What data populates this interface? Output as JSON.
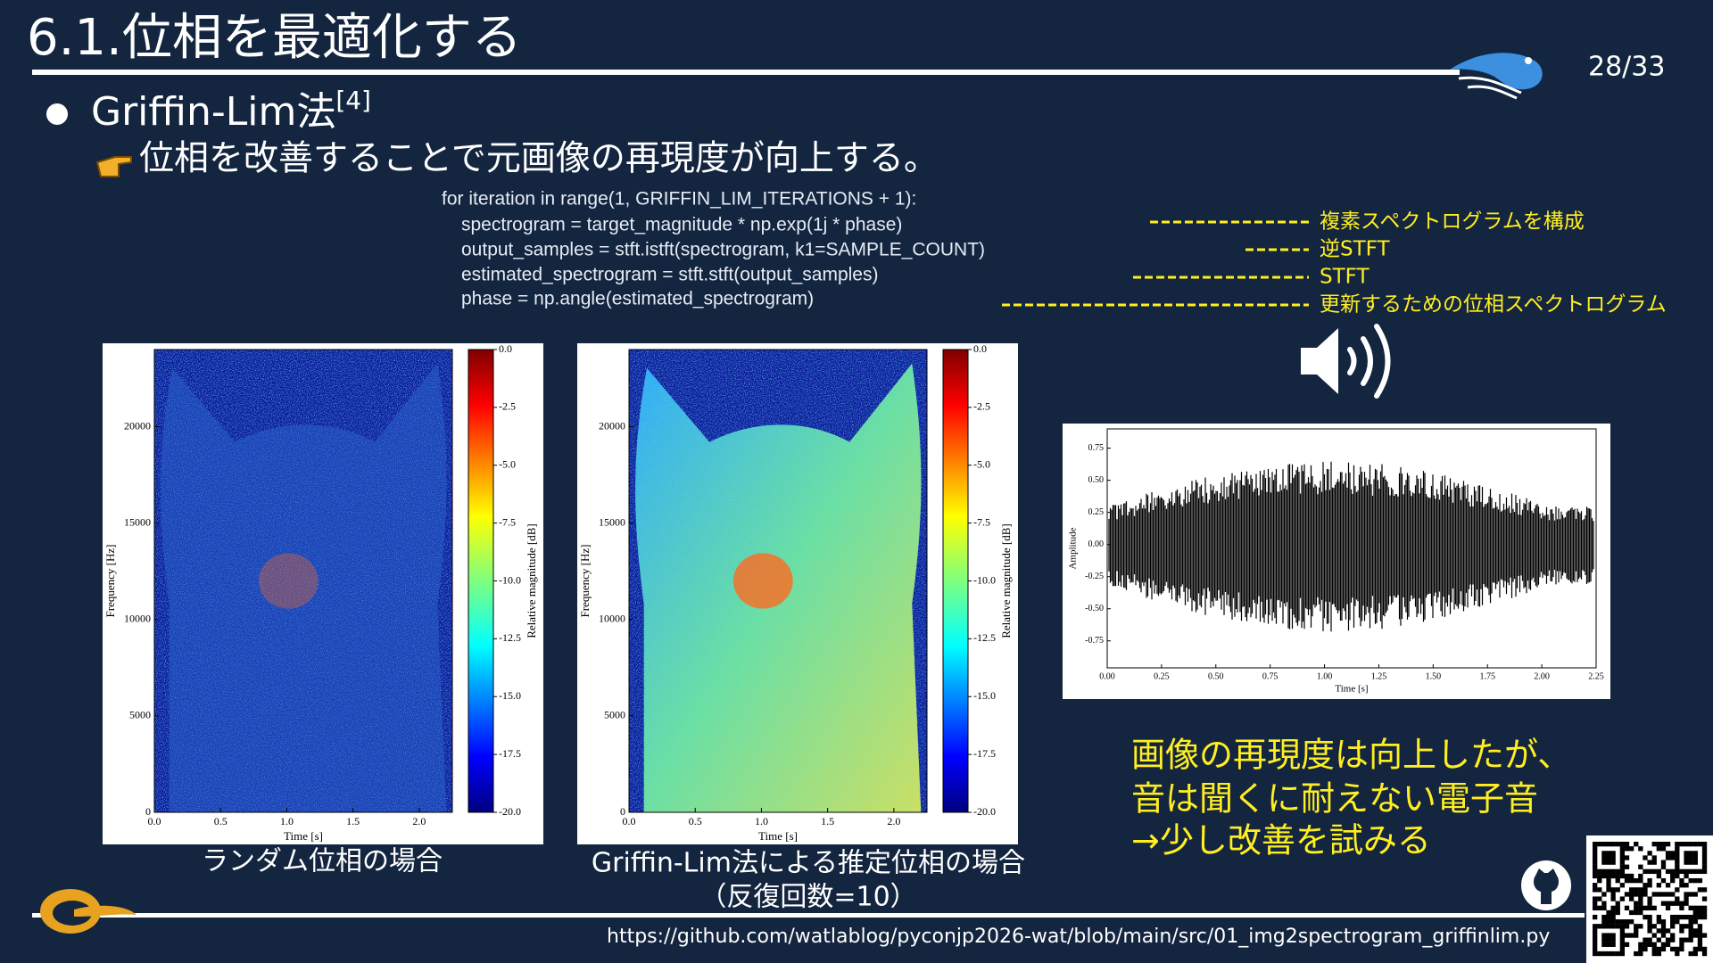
{
  "header": {
    "title": "6.1.位相を最適化する",
    "page": "28/33"
  },
  "bullet": {
    "text": "Griffin-Lim法",
    "ref": "[4]"
  },
  "sub": "位相を改善することで元画像の再現度が向上する。",
  "code": [
    "for iteration in range(1, GRIFFIN_LIM_ITERATIONS + 1):",
    "spectrogram = target_magnitude * np.exp(1j * phase)",
    "output_samples = stft.istft(spectrogram, k1=SAMPLE_COUNT)",
    "estimated_spectrogram = stft.stft(output_samples)",
    "phase = np.angle(estimated_spectrogram)"
  ],
  "annotations": [
    "複素スペクトログラムを構成",
    "逆STFT",
    "STFT",
    "更新するための位相スペクトログラム"
  ],
  "figures": [
    {
      "xlabel": "Time [s]",
      "ylabel": "Frequency [Hz]",
      "cbar_label": "Relative magnitude [dB]",
      "xlim": [
        0,
        2.25
      ],
      "ylim": [
        0,
        24000
      ],
      "cbar_lim": [
        -20,
        0
      ],
      "xticks": [
        {
          "value": 0,
          "label": "0.0"
        },
        0.5,
        {
          "value": 1,
          "label": "1.0"
        },
        1.5,
        {
          "value": 2,
          "label": "2.0"
        }
      ],
      "yticks": [
        0,
        5000,
        10000,
        15000,
        20000
      ],
      "cbar_ticks": [
        {
          "value": 0,
          "label": "0.0"
        },
        -2.5,
        {
          "value": -5,
          "label": "-5.0"
        },
        -7.5,
        {
          "value": -10,
          "label": "-10.0"
        },
        -12.5,
        {
          "value": -15,
          "label": "-15.0"
        },
        -17.5,
        {
          "value": -20,
          "label": "-20.0"
        }
      ]
    },
    {
      "xlabel": "Time [s]",
      "ylabel": "Frequency [Hz]",
      "cbar_label": "Relative magnitude [dB]",
      "xlim": [
        0,
        2.25
      ],
      "ylim": [
        0,
        24000
      ],
      "cbar_lim": [
        -20,
        0
      ],
      "xticks": [
        {
          "value": 0,
          "label": "0.0"
        },
        0.5,
        {
          "value": 1,
          "label": "1.0"
        },
        1.5,
        {
          "value": 2,
          "label": "2.0"
        }
      ],
      "yticks": [
        0,
        5000,
        10000,
        15000,
        20000
      ],
      "cbar_ticks": [
        {
          "value": 0,
          "label": "0.0"
        },
        -2.5,
        {
          "value": -5,
          "label": "-5.0"
        },
        -7.5,
        {
          "value": -10,
          "label": "-10.0"
        },
        -12.5,
        {
          "value": -15,
          "label": "-15.0"
        },
        -17.5,
        {
          "value": -20,
          "label": "-20.0"
        }
      ]
    }
  ],
  "captions": [
    "ランダム位相の場合",
    "Griffin-Lim法による推定位相の場合",
    "（反復回数=10）"
  ],
  "waveform": {
    "xlabel": "Time [s]",
    "ylabel": "Amplitude",
    "xlim": [
      0,
      2.25
    ],
    "ylim": [
      -0.96,
      0.9
    ],
    "xticks": [
      {
        "value": 0,
        "label": "0.00"
      },
      0.25,
      {
        "value": 0.5,
        "label": "0.50"
      },
      0.75,
      {
        "value": 1,
        "label": "1.00"
      },
      1.25,
      {
        "value": 1.5,
        "label": "1.50"
      },
      1.75,
      {
        "value": 2,
        "label": "2.00"
      },
      2.25
    ],
    "yticks": [
      -0.75,
      {
        "value": -0.5,
        "label": "-0.50"
      },
      -0.25,
      {
        "value": 0,
        "label": "0.00"
      },
      0.25,
      {
        "value": 0.5,
        "label": "0.50"
      },
      0.75
    ]
  },
  "note": [
    "画像の再現度は向上したが、",
    "音は聞くに耐えない電子音",
    "→少し改善を試みる"
  ],
  "url": "https://github.com/watlablog/pyconjp2026-wat/blob/main/src/01_img2spectrogram_griffinlim.py"
}
